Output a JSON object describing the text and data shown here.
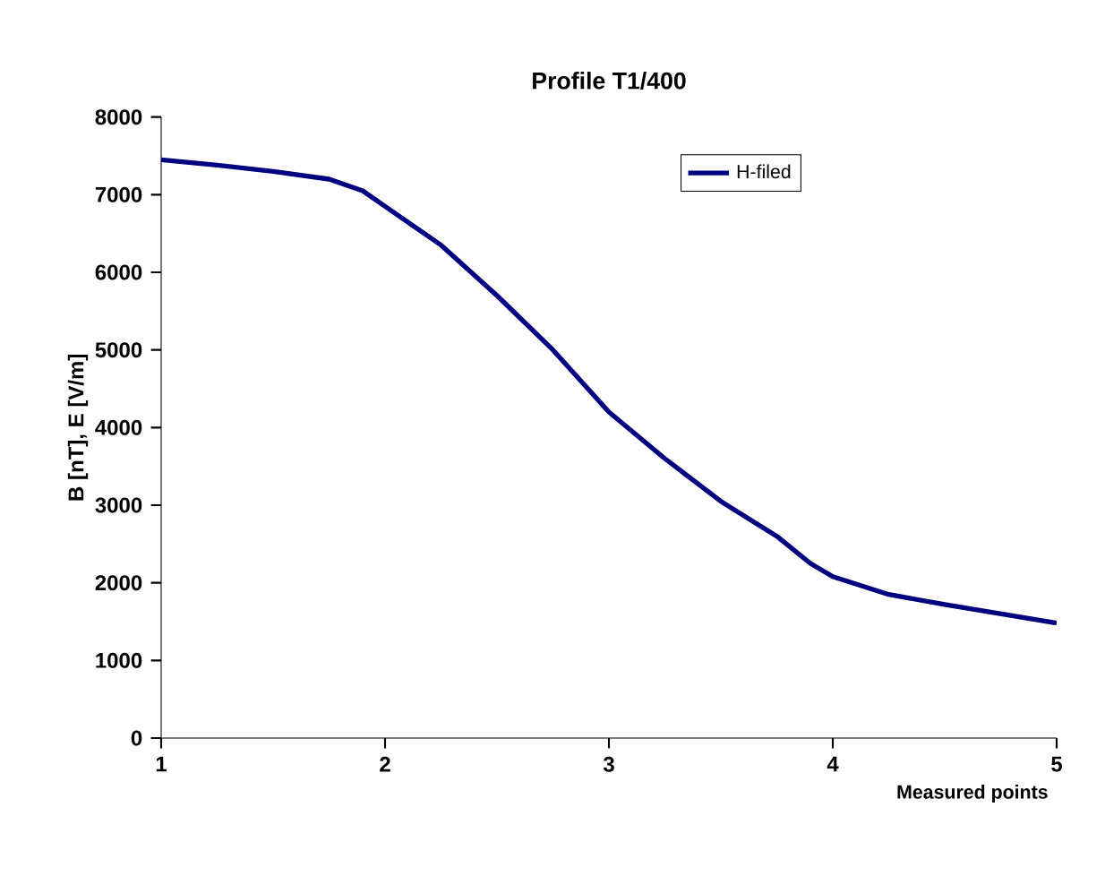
{
  "chart_data": {
    "type": "line",
    "title": "Profile T1/400",
    "xlabel": "Measured points",
    "ylabel": "B [nT], E [V/m]",
    "x": [
      1,
      1.25,
      1.5,
      1.75,
      1.9,
      2,
      2.25,
      2.5,
      2.75,
      3,
      3.25,
      3.5,
      3.75,
      3.9,
      4,
      4.25,
      4.5,
      5
    ],
    "series": [
      {
        "name": "H-filed",
        "color": "#000080",
        "values": [
          7450,
          7380,
          7300,
          7200,
          7050,
          6850,
          6350,
          5700,
          5000,
          4200,
          3600,
          3050,
          2600,
          2250,
          2080,
          1850,
          1720,
          1480
        ]
      }
    ],
    "xlim": [
      1,
      5
    ],
    "xticks": [
      1,
      2,
      3,
      4,
      5
    ],
    "ylim": [
      0,
      8000
    ],
    "yticks": [
      0,
      1000,
      2000,
      3000,
      4000,
      5000,
      6000,
      7000,
      8000
    ],
    "grid": false,
    "legend": "top right",
    "marker": "none",
    "line_style": "solid"
  }
}
